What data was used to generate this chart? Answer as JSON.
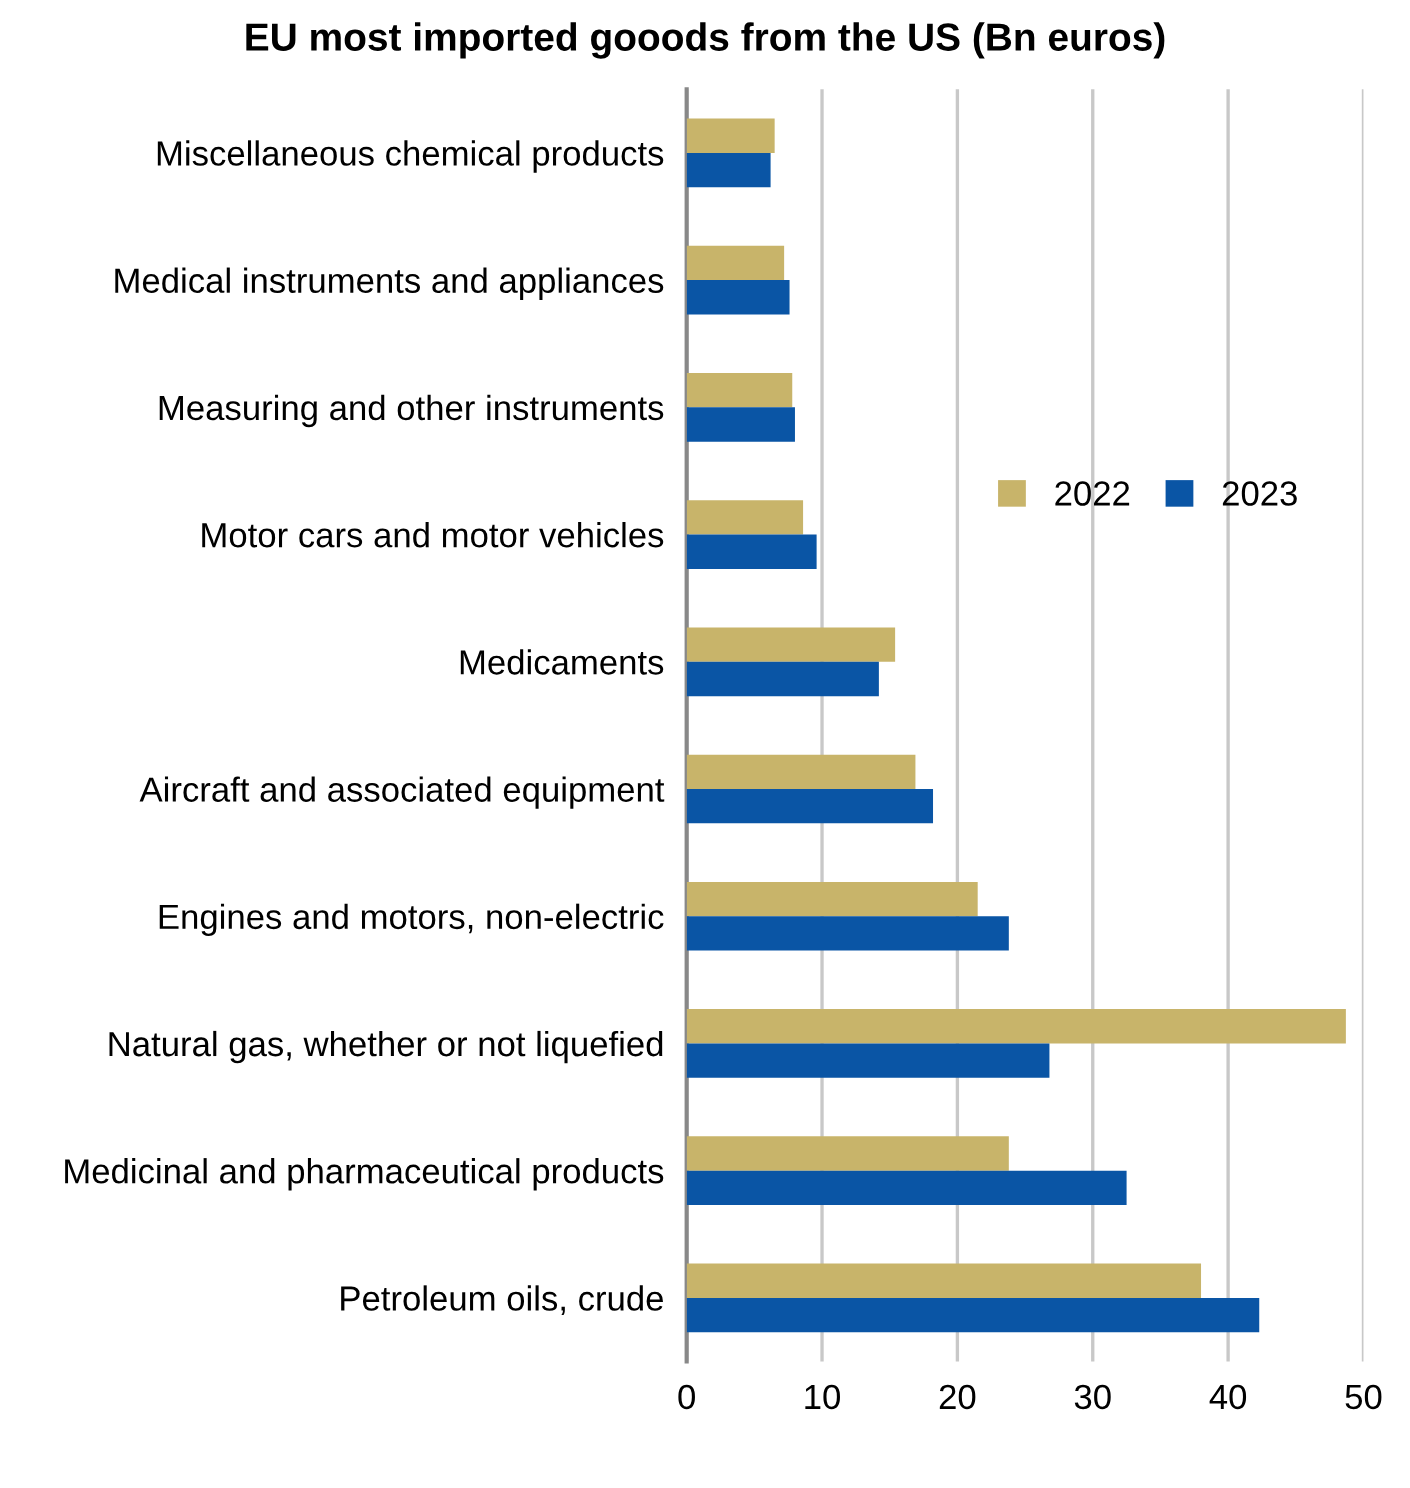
{
  "chart_data": {
    "type": "bar",
    "orientation": "horizontal",
    "title": "EU most imported gooods from the US (Bn euros)",
    "categories": [
      "Miscellaneous chemical products",
      "Medical instruments and appliances",
      "Measuring and other instruments",
      "Motor cars and motor vehicles",
      "Medicaments",
      "Aircraft and associated equipment",
      "Engines and motors, non-electric",
      "Natural gas, whether or not liquefied",
      "Medicinal and pharmaceutical products",
      "Petroleum oils, crude"
    ],
    "series": [
      {
        "name": "2022",
        "color": "#c8b46a",
        "values": [
          6.5,
          7.2,
          7.8,
          8.6,
          15.4,
          16.9,
          21.5,
          48.7,
          23.8,
          38.0
        ]
      },
      {
        "name": "2023",
        "color": "#0a55a5",
        "values": [
          6.2,
          7.6,
          8.0,
          9.6,
          14.2,
          18.2,
          23.8,
          26.8,
          32.5,
          42.3
        ]
      }
    ],
    "xlim": [
      0,
      50
    ],
    "xticks": [
      0,
      10,
      20,
      30,
      40,
      50
    ],
    "grid": "x",
    "legend": "right"
  }
}
